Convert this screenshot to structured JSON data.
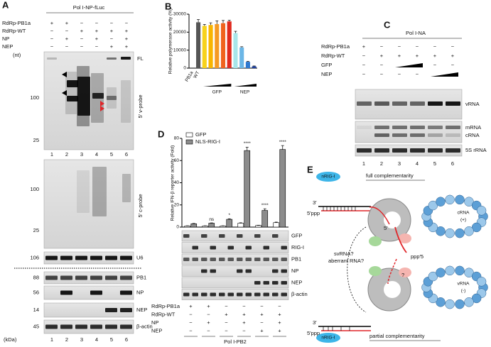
{
  "panels": {
    "A": {
      "label": "A",
      "title": "Pol I-NP-fLuc",
      "rows": [
        {
          "name": "RdRp-PB1a",
          "signs": [
            "+",
            "+",
            "−",
            "−",
            "−",
            "−"
          ]
        },
        {
          "name": "RdRp-WT",
          "signs": [
            "−",
            "−",
            "+",
            "+",
            "+",
            "+"
          ]
        },
        {
          "name": "NP",
          "signs": [
            "−",
            "+",
            "−",
            "+",
            "−",
            "+"
          ]
        },
        {
          "name": "NEP",
          "signs": [
            "−",
            "−",
            "−",
            "−",
            "+",
            "+"
          ]
        }
      ],
      "unit_nt": "(nt)",
      "blot1_ticks": [
        "100",
        "25"
      ],
      "blot1_fl": "FL",
      "blot1_probe": "5′ v-probe",
      "lanes": [
        "1",
        "2",
        "3",
        "4",
        "5",
        "6"
      ],
      "blot2_ticks": [
        "100",
        "25"
      ],
      "blot2_probe": "5′ c-probe",
      "proteins": [
        {
          "size": "106",
          "name": "U6"
        },
        {
          "size": "88",
          "name": "PB1"
        },
        {
          "size": "56",
          "name": "NP"
        },
        {
          "size": "14",
          "name": "NEP"
        },
        {
          "size": "45",
          "name": "β-actin"
        }
      ],
      "unit_kda": "(kDa)"
    },
    "C": {
      "label": "C",
      "title": "Pol I-NA",
      "rows": [
        {
          "name": "RdRp-PB1a",
          "signs": [
            "+",
            "−",
            "−",
            "−",
            "−",
            "−"
          ]
        },
        {
          "name": "RdRp-WT",
          "signs": [
            "−",
            "+",
            "+",
            "+",
            "+",
            "+"
          ]
        },
        {
          "name": "GFP",
          "signs": [
            "−",
            "−",
            null,
            null,
            "−",
            "−"
          ]
        },
        {
          "name": "NEP",
          "signs": [
            "−",
            "−",
            "−",
            "−",
            null,
            null
          ]
        }
      ],
      "bands": [
        "vRNA",
        "mRNA",
        "cRNA",
        "5S rRNA"
      ],
      "lanes": [
        "1",
        "2",
        "3",
        "4",
        "5",
        "6"
      ]
    },
    "D": {
      "label": "D",
      "proteins": [
        "GFP",
        "RIG-I",
        "PB1",
        "NP",
        "NEP",
        "β-actin"
      ],
      "rows": [
        {
          "name": "RdRp-PB1a",
          "signs": [
            "+",
            "+",
            "−",
            "−",
            "−",
            "−"
          ]
        },
        {
          "name": "RdRp-WT",
          "signs": [
            "−",
            "−",
            "+",
            "+",
            "+",
            "+"
          ]
        },
        {
          "name": "NP",
          "signs": [
            "−",
            "+",
            "−",
            "+",
            "−",
            "+"
          ]
        },
        {
          "name": "NEP",
          "signs": [
            "−",
            "−",
            "−",
            "−",
            "+",
            "+"
          ]
        }
      ],
      "footer": "Pol I-PB2"
    },
    "E": {
      "label": "E",
      "nrig_top": "nRIG-I",
      "nrig_bottom": "nRIG-I",
      "full": "full complementarity",
      "partial": "partial complementarity",
      "three_top": "3′",
      "ppp_top": "5′ppp",
      "three_bottom": "3′",
      "ppp_bottom": "5′ppp",
      "svrna": "svRNA?",
      "aberrant": "aberrant RNA?",
      "crna": "cRNA",
      "plus": "(+)",
      "vrna": "vRNA",
      "minus": "(-)",
      "five": "5′",
      "ppp5": "ppp′5",
      "q": "?"
    }
  },
  "chart_data": [
    {
      "type": "bar",
      "label": "B",
      "ylabel": "Relative polymerase activity (%)",
      "categories": [
        "PB1a",
        "WT",
        null,
        null,
        null,
        null,
        null,
        null,
        null,
        null,
        null
      ],
      "values": [
        0,
        25500,
        23500,
        24000,
        24500,
        25000,
        26000,
        19500,
        11500,
        3500,
        1000
      ],
      "errors": [
        0,
        1500,
        800,
        1200,
        1800,
        1500,
        600,
        1000,
        400,
        300,
        200
      ],
      "colors": [
        "#000000",
        "#555555",
        "#f7d21c",
        "#f8b500",
        "#f59a23",
        "#f0631e",
        "#e02a1e",
        "#a8e6ea",
        "#6bb6e6",
        "#2f79d0",
        "#1c3f9e"
      ],
      "groups": [
        "GFP",
        "NEP"
      ],
      "ylim": [
        0,
        30000
      ],
      "yticks": [
        0,
        10000,
        20000,
        30000
      ]
    },
    {
      "type": "grouped_bar",
      "ylabel": "Relative IFN-β reporter activity (Fold)",
      "categories": [
        null,
        null,
        null,
        null,
        null,
        null
      ],
      "series": [
        {
          "name": "GFP",
          "color": "#ffffff",
          "values": [
            1,
            1,
            1,
            3.5,
            1.5,
            4
          ],
          "errors": [
            0.2,
            0.2,
            0.2,
            0.4,
            0.2,
            0.5
          ]
        },
        {
          "name": "NLS-RIG-I",
          "color": "#8c8c8c",
          "values": [
            3,
            3.5,
            7,
            69,
            15,
            70
          ],
          "errors": [
            0.3,
            0.3,
            0.5,
            3,
            1.5,
            3.5
          ]
        }
      ],
      "significance": [
        null,
        "ns",
        "*",
        "****",
        "****",
        "****"
      ],
      "ylim": [
        0,
        80
      ],
      "yticks": [
        0,
        20,
        40,
        60,
        80
      ],
      "legend": "top-left"
    }
  ]
}
